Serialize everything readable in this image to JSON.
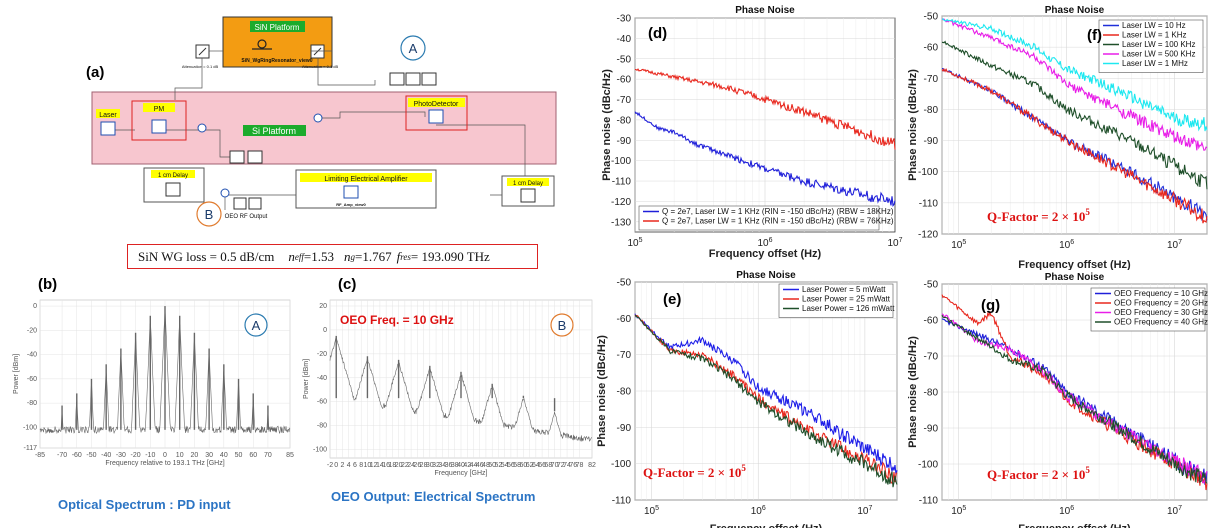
{
  "diagram_a": {
    "letter": "(a)",
    "sin_platform_label": "SiN Platform",
    "sin_component_label": "SiN_WgRingResonator_view0",
    "attenuation_left": "Attenuation = 0.1 dB",
    "attenuation_right": "Attenuation = 0.1 dB",
    "marker_a": "A",
    "marker_b": "B",
    "laser_label": "Laser",
    "pm_label": "PM",
    "si_platform_label": "Si Platform",
    "photodetector_label": "PhotoDetector",
    "delay_left_label": "1 cm Delay",
    "delay_right_label": "1 cm Delay",
    "amplifier_label": "Limiting Electrical Amplifier",
    "amplifier_component": "RF_Amp_view0",
    "oeo_output_label": "OEO RF Output",
    "colors": {
      "sin_box": "#f39c12",
      "green_label": "#1cab2c",
      "yellow_label": "#ffff00",
      "si_platform_bg": "#f7c6cf"
    }
  },
  "params_box": {
    "wg_loss": "SiN WG loss = 0.5 dB/cm",
    "neff_sym": "n",
    "neff_sub": "eff",
    "neff_val": "=1.53",
    "ng_sym": "n",
    "ng_sub": "g",
    "ng_val": "=1.767",
    "fres_sym": "f",
    "fres_sub": "res",
    "fres_val": "= 193.090 THz"
  },
  "captions": {
    "optical": "Optical Spectrum : PD input",
    "electrical": "OEO Output: Electrical Spectrum"
  },
  "chart_data": [
    {
      "id": "b",
      "letter": "(b)",
      "marker": "A",
      "type": "line",
      "xlabel": "Frequency relative to 193.1 THz [GHz]",
      "ylabel": "Power [dBm]",
      "xticks": [
        -85,
        -70,
        -60,
        -50,
        -40,
        -30,
        -20,
        -10,
        0,
        10,
        20,
        30,
        40,
        50,
        60,
        70,
        85
      ],
      "yticks": [
        0,
        -20,
        -40,
        -60,
        -80,
        -100,
        -117
      ],
      "xlim": [
        -85,
        85
      ],
      "ylim": [
        -117,
        5
      ],
      "peaks_x": [
        -70,
        -60,
        -50,
        -40,
        -30,
        -20,
        -10,
        0,
        10,
        20,
        30,
        40,
        50,
        60,
        70
      ],
      "peaks_y": [
        -82,
        -72,
        -60,
        -48,
        -35,
        -22,
        -8,
        0,
        -8,
        -22,
        -35,
        -48,
        -60,
        -72,
        -82
      ],
      "noise_floor": -102,
      "color": "#666666"
    },
    {
      "id": "c",
      "letter": "(c)",
      "marker": "B",
      "annotation": "OEO Freq. = 10 GHz",
      "type": "line",
      "xlabel": "Frequency [GHz]",
      "ylabel": "Power [dBm]",
      "xticks": [
        -2,
        0,
        2,
        4,
        6,
        8,
        10,
        12,
        14,
        16,
        18,
        20,
        22,
        24,
        26,
        28,
        30,
        32,
        34,
        36,
        38,
        40,
        42,
        44,
        46,
        48,
        50,
        52,
        54,
        56,
        58,
        60,
        62,
        64,
        66,
        68,
        70,
        72,
        74,
        76,
        78,
        82
      ],
      "yticks": [
        20,
        0,
        -20,
        -40,
        -60,
        -80,
        -100
      ],
      "xlim": [
        -2,
        82
      ],
      "ylim": [
        -107,
        25
      ],
      "peaks_x": [
        0,
        10,
        20,
        30,
        40,
        50,
        60,
        70
      ],
      "peaks_y": [
        -5,
        -22,
        -25,
        -30,
        -35,
        -45,
        -55,
        -68
      ],
      "noise_floor": -57,
      "color": "#666666"
    },
    {
      "id": "d",
      "letter": "(d)",
      "title": "Phase Noise",
      "type": "line",
      "xlabel": "Frequency offset (Hz)",
      "ylabel": "Phase noise (dBc/Hz)",
      "xscale": "log",
      "xlim": [
        100000,
        10000000
      ],
      "ylim": [
        -135,
        -30
      ],
      "xticks": [
        100000,
        1000000,
        10000000
      ],
      "yticks": [
        -30,
        -40,
        -50,
        -60,
        -70,
        -80,
        -90,
        -100,
        -110,
        -120,
        -130
      ],
      "legend_position": "bottom-left",
      "series": [
        {
          "name": "Q = 2e7, Laser LW = 1 KHz (RIN = -150 dBc/Hz) (RBW = 18KHz)",
          "color": "#1f1fd9",
          "x": [
            100000,
            150000,
            200000,
            300000,
            500000,
            1000000,
            2000000,
            5000000,
            10000000
          ],
          "y": [
            -76,
            -84,
            -86,
            -92,
            -97,
            -104,
            -110,
            -116,
            -120
          ]
        },
        {
          "name": "Q = 2e7, Laser LW = 1 KHz (RIN = -150 dBc/Hz) (RBW = 76KHz)",
          "color": "#e8281e",
          "x": [
            100000,
            200000,
            500000,
            1000000,
            2000000,
            5000000,
            10000000
          ],
          "y": [
            -55,
            -59,
            -64,
            -70,
            -76,
            -85,
            -92
          ]
        }
      ]
    },
    {
      "id": "f",
      "letter": "(f)",
      "title": "Phase Noise",
      "annotation_prefix": "Q-Factor = 2 ×",
      "annotation_base": "10",
      "annotation_exp": "5",
      "type": "line",
      "xlabel": "Frequency offset (Hz)",
      "ylabel": "Phase noise (dBc/Hz)",
      "xscale": "log",
      "xlim": [
        70000,
        20000000
      ],
      "ylim": [
        -120,
        -50
      ],
      "xticks": [
        100000,
        1000000,
        10000000
      ],
      "yticks": [
        -50,
        -60,
        -70,
        -80,
        -90,
        -100,
        -110,
        -120
      ],
      "legend_position": "top-right",
      "series": [
        {
          "name": "Laser LW = 10 Hz",
          "color": "#1f2fd9",
          "x": [
            70000,
            200000,
            500000,
            1000000,
            3000000,
            10000000,
            20000000
          ],
          "y": [
            -67,
            -74,
            -83,
            -90,
            -98,
            -108,
            -114
          ]
        },
        {
          "name": "Laser LW = 1 KHz",
          "color": "#e8281e",
          "x": [
            70000,
            200000,
            500000,
            1000000,
            3000000,
            10000000,
            20000000
          ],
          "y": [
            -67,
            -74,
            -83,
            -90,
            -99,
            -109,
            -115
          ]
        },
        {
          "name": "Laser LW = 100 KHz",
          "color": "#1f4f2a",
          "x": [
            70000,
            200000,
            500000,
            1000000,
            3000000,
            10000000,
            20000000
          ],
          "y": [
            -58,
            -66,
            -72,
            -80,
            -88,
            -98,
            -104
          ]
        },
        {
          "name": "Laser LW = 500 KHz",
          "color": "#e81ee8",
          "x": [
            70000,
            200000,
            500000,
            1000000,
            3000000,
            10000000,
            20000000
          ],
          "y": [
            -51,
            -57,
            -63,
            -72,
            -80,
            -89,
            -93
          ]
        },
        {
          "name": "Laser LW = 1 MHz",
          "color": "#1ee8f0",
          "x": [
            70000,
            200000,
            500000,
            1000000,
            3000000,
            10000000,
            20000000
          ],
          "y": [
            -51,
            -54,
            -60,
            -67,
            -74,
            -83,
            -85
          ]
        }
      ]
    },
    {
      "id": "e",
      "letter": "(e)",
      "title": "Phase Noise",
      "annotation_prefix": "Q-Factor = 2 ×",
      "annotation_base": "10",
      "annotation_exp": "5",
      "type": "line",
      "xlabel": "Frequency offset (Hz)",
      "ylabel": "Phase noise (dBc/Hz)",
      "xscale": "log",
      "xlim": [
        70000,
        20000000
      ],
      "ylim": [
        -110,
        -50
      ],
      "xticks": [
        100000,
        1000000,
        10000000
      ],
      "yticks": [
        -50,
        -60,
        -70,
        -80,
        -90,
        -100,
        -110
      ],
      "legend_position": "top-right",
      "series": [
        {
          "name": "Laser Power = 5 mWatt",
          "color": "#1f1fe8",
          "x": [
            70000,
            150000,
            300000,
            600000,
            1000000,
            3000000,
            10000000,
            20000000
          ],
          "y": [
            -59,
            -68,
            -66,
            -72,
            -79,
            -86,
            -96,
            -101
          ]
        },
        {
          "name": "Laser Power = 25 mWatt",
          "color": "#e8281e",
          "x": [
            70000,
            150000,
            300000,
            600000,
            1000000,
            3000000,
            10000000,
            20000000
          ],
          "y": [
            -59,
            -69,
            -70,
            -76,
            -82,
            -91,
            -99,
            -104
          ]
        },
        {
          "name": "Laser Power = 126 mWatt",
          "color": "#1f4f2a",
          "x": [
            70000,
            150000,
            300000,
            600000,
            1000000,
            3000000,
            10000000,
            20000000
          ],
          "y": [
            -59,
            -69,
            -71,
            -77,
            -83,
            -92,
            -100,
            -105
          ]
        }
      ]
    },
    {
      "id": "g",
      "letter": "(g)",
      "title": "Phase Noise",
      "annotation_prefix": "Q-Factor = 2 ×",
      "annotation_base": "10",
      "annotation_exp": "5",
      "type": "line",
      "xlabel": "Frequency offset (Hz)",
      "ylabel": "Phase noise (dBc/Hz)",
      "xscale": "log",
      "xlim": [
        70000,
        20000000
      ],
      "ylim": [
        -110,
        -50
      ],
      "xticks": [
        100000,
        1000000,
        10000000
      ],
      "yticks": [
        -50,
        -60,
        -70,
        -80,
        -90,
        -100,
        -110
      ],
      "legend_position": "top-right",
      "series": [
        {
          "name": "OEO Frequency = 10 GHz",
          "color": "#1f1fd9",
          "x": [
            70000,
            150000,
            300000,
            600000,
            1000000,
            3000000,
            10000000,
            20000000
          ],
          "y": [
            -60,
            -64,
            -68,
            -73,
            -80,
            -89,
            -99,
            -104
          ]
        },
        {
          "name": "OEO Frequency = 20 GHz",
          "color": "#e8281e",
          "x": [
            70000,
            150000,
            200000,
            300000,
            600000,
            1000000,
            3000000,
            10000000,
            20000000
          ],
          "y": [
            -53,
            -61,
            -58,
            -70,
            -75,
            -82,
            -91,
            -100,
            -105
          ]
        },
        {
          "name": "OEO Frequency = 30 GHz",
          "color": "#e81ee8",
          "x": [
            70000,
            150000,
            300000,
            600000,
            1000000,
            3000000,
            10000000,
            20000000
          ],
          "y": [
            -58,
            -66,
            -68,
            -74,
            -81,
            -90,
            -99,
            -104
          ]
        },
        {
          "name": "OEO Frequency = 40 GHz",
          "color": "#1f4f2a",
          "x": [
            70000,
            150000,
            300000,
            600000,
            1000000,
            3000000,
            10000000,
            20000000
          ],
          "y": [
            -59,
            -65,
            -71,
            -74,
            -81,
            -90,
            -100,
            -105
          ]
        }
      ]
    }
  ]
}
